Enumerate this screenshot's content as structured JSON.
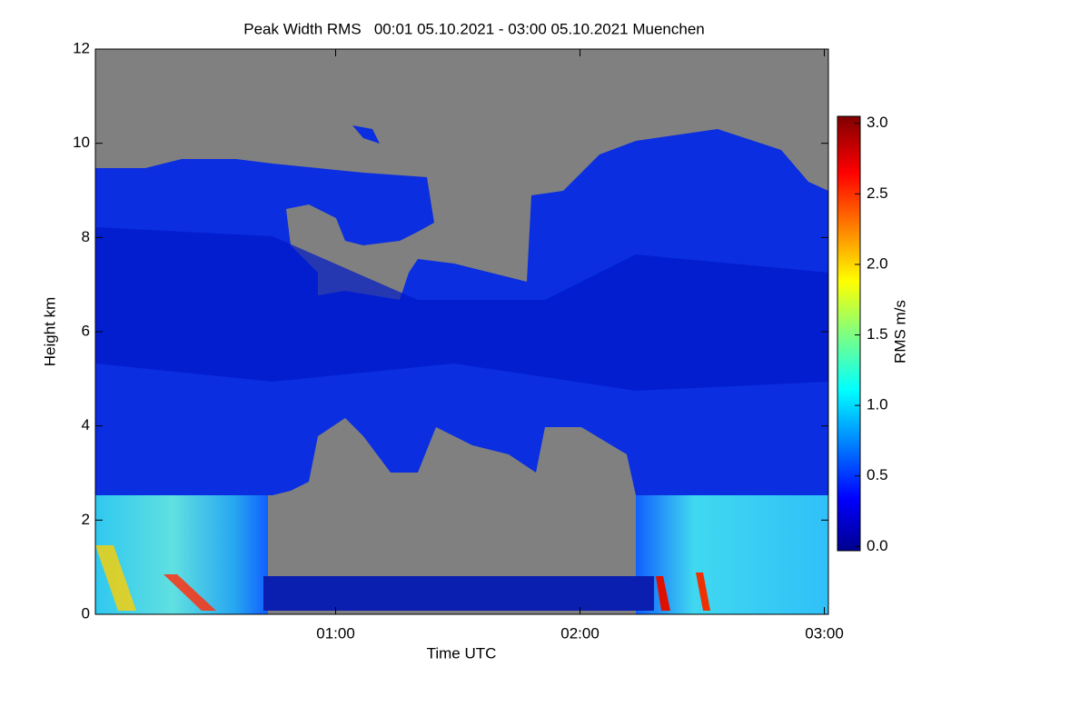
{
  "chart_data": {
    "type": "heatmap",
    "title": "Peak Width RMS   00:01 05.10.2021 - 03:00 05.10.2021 Muenchen",
    "xlabel": "Time UTC",
    "ylabel": "Height km",
    "xlim": [
      1,
      181
    ],
    "xticks": [
      {
        "value": 60,
        "label": "01:00"
      },
      {
        "value": 120,
        "label": "02:00"
      },
      {
        "value": 180,
        "label": "03:00"
      }
    ],
    "ylim": [
      0,
      12
    ],
    "yticks": [
      0,
      2,
      4,
      6,
      8,
      10,
      12
    ],
    "colorbar_label": "RMS m/s",
    "clim": [
      -0.03,
      3.05
    ],
    "cticks": [
      {
        "value": 0,
        "label": "0.0"
      },
      {
        "value": 0.5,
        "label": "0.5"
      },
      {
        "value": 1,
        "label": "1.0"
      },
      {
        "value": 1.5,
        "label": "1.5"
      },
      {
        "value": 2,
        "label": "2.0"
      },
      {
        "value": 2.5,
        "label": "2.5"
      },
      {
        "value": 3,
        "label": "3.0"
      }
    ]
  }
}
